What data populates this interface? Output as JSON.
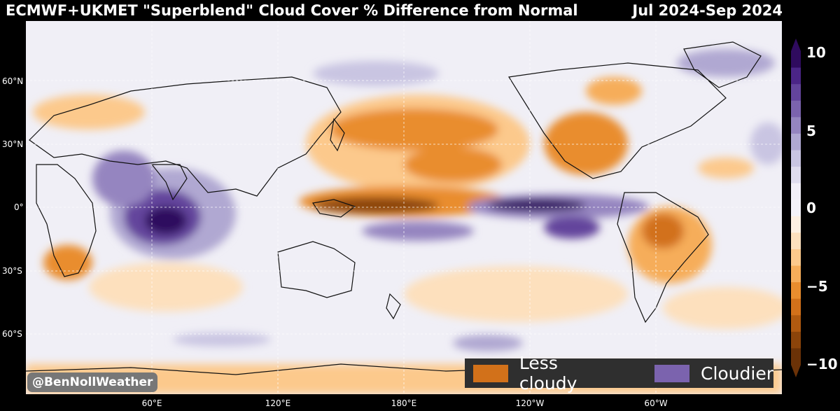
{
  "title": "ECMWF+UKMET \"Superblend\" Cloud Cover % Difference from Normal",
  "period": "Jul 2024-Sep 2024",
  "latitude_labels": [
    "60°N",
    "30°N",
    "0°",
    "30°S",
    "60°S"
  ],
  "longitude_labels": [
    "60°E",
    "120°E",
    "180°E",
    "120°W",
    "60°W"
  ],
  "colorbar": {
    "tick_labels": [
      "10",
      "5",
      "0",
      "−5",
      "−10"
    ],
    "range": [
      -10,
      10
    ],
    "extend": "both",
    "negative_colors": [
      "#fdf0e2",
      "#fde0bd",
      "#fcc98c",
      "#f6ad5a",
      "#e98d2e",
      "#d2711a",
      "#b05a10",
      "#8b440a",
      "#6b3207"
    ],
    "positive_colors": [
      "#f2eff8",
      "#dfdcee",
      "#c9c5e2",
      "#b0a8d2",
      "#9585c0",
      "#7b63ae",
      "#63449c",
      "#4b2587",
      "#2f0b5e"
    ],
    "neutral_color": "#f4f3f9"
  },
  "legend": {
    "less_cloudy": {
      "label": "Less cloudy",
      "color": "#d2711a"
    },
    "cloudier": {
      "label": "Cloudier",
      "color": "#7b63ae"
    }
  },
  "watermark": "@BenNollWeather"
}
